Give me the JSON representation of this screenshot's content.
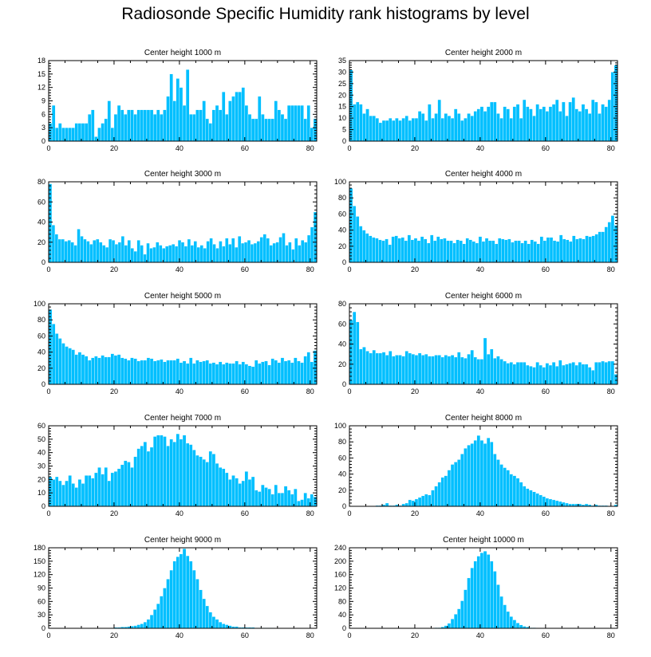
{
  "title": "Radiosonde Specific Humidity rank histograms by level",
  "colors": {
    "bar": "#00bfff",
    "frame": "#000000",
    "background": "#ffffff"
  },
  "chart_data": [
    {
      "type": "bar",
      "title": "Center height 1000 m",
      "xlim": [
        0,
        82
      ],
      "ylim": [
        0,
        18
      ],
      "xticks": [
        0,
        20,
        40,
        60,
        80
      ],
      "yticks": [
        0,
        3,
        6,
        9,
        12,
        15,
        18
      ],
      "values": [
        4,
        8,
        3,
        4,
        3,
        3,
        3,
        3,
        4,
        4,
        4,
        4,
        6,
        7,
        1,
        3,
        4,
        5,
        9,
        3,
        6,
        8,
        7,
        6,
        7,
        7,
        6,
        7,
        7,
        7,
        7,
        7,
        6,
        7,
        6,
        7,
        10,
        15,
        9,
        14,
        12,
        8,
        16,
        6,
        6,
        7,
        7,
        9,
        5,
        4,
        7,
        8,
        7,
        11,
        6,
        9,
        10,
        11,
        11,
        12,
        8,
        6,
        5,
        5,
        10,
        6,
        5,
        5,
        5,
        9,
        7,
        6,
        5,
        8,
        8,
        8,
        8,
        8,
        5,
        8,
        3,
        5
      ]
    },
    {
      "type": "bar",
      "title": "Center height 2000 m",
      "xlim": [
        0,
        82
      ],
      "ylim": [
        0,
        35
      ],
      "xticks": [
        0,
        20,
        40,
        60,
        80
      ],
      "yticks": [
        0,
        5,
        10,
        15,
        20,
        25,
        30,
        35
      ],
      "values": [
        31,
        16,
        17,
        16,
        12,
        14,
        11,
        11,
        10,
        8,
        9,
        9,
        10,
        9,
        10,
        9,
        10,
        11,
        9,
        10,
        10,
        13,
        12,
        9,
        16,
        10,
        12,
        18,
        10,
        12,
        11,
        10,
        14,
        12,
        9,
        10,
        12,
        11,
        13,
        14,
        15,
        13,
        15,
        17,
        17,
        12,
        10,
        15,
        14,
        10,
        15,
        16,
        10,
        18,
        15,
        14,
        11,
        16,
        14,
        15,
        13,
        15,
        16,
        18,
        13,
        17,
        11,
        17,
        19,
        14,
        13,
        16,
        14,
        12,
        18,
        17,
        12,
        16,
        15,
        18,
        30,
        33
      ]
    },
    {
      "type": "bar",
      "title": "Center height 3000 m",
      "xlim": [
        0,
        82
      ],
      "ylim": [
        0,
        80
      ],
      "xticks": [
        0,
        20,
        40,
        60,
        80
      ],
      "yticks": [
        0,
        20,
        40,
        60,
        80
      ],
      "values": [
        78,
        37,
        28,
        23,
        23,
        21,
        22,
        20,
        17,
        33,
        26,
        23,
        21,
        18,
        22,
        23,
        20,
        17,
        15,
        23,
        22,
        18,
        20,
        26,
        17,
        22,
        14,
        11,
        22,
        17,
        8,
        19,
        14,
        15,
        20,
        17,
        14,
        16,
        17,
        18,
        16,
        22,
        20,
        16,
        23,
        17,
        21,
        15,
        17,
        14,
        21,
        24,
        18,
        14,
        21,
        16,
        24,
        18,
        24,
        15,
        26,
        19,
        20,
        22,
        18,
        19,
        21,
        25,
        28,
        24,
        17,
        19,
        20,
        25,
        29,
        17,
        20,
        13,
        24,
        17,
        22,
        20,
        27,
        35,
        50
      ]
    },
    {
      "type": "bar",
      "title": "Center height 4000 m",
      "xlim": [
        0,
        82
      ],
      "ylim": [
        0,
        100
      ],
      "xticks": [
        0,
        20,
        40,
        60,
        80
      ],
      "yticks": [
        0,
        20,
        40,
        60,
        80,
        100
      ],
      "values": [
        92,
        70,
        57,
        45,
        40,
        36,
        33,
        31,
        30,
        28,
        27,
        29,
        22,
        32,
        33,
        30,
        31,
        27,
        34,
        28,
        30,
        27,
        32,
        29,
        24,
        34,
        27,
        32,
        29,
        30,
        27,
        27,
        24,
        28,
        27,
        23,
        30,
        28,
        26,
        24,
        32,
        26,
        30,
        27,
        27,
        23,
        30,
        29,
        28,
        29,
        25,
        27,
        27,
        24,
        27,
        23,
        28,
        26,
        23,
        32,
        27,
        31,
        31,
        27,
        26,
        34,
        29,
        28,
        26,
        33,
        29,
        30,
        29,
        33,
        32,
        33,
        35,
        38,
        38,
        44,
        50,
        58,
        46
      ]
    },
    {
      "type": "bar",
      "title": "Center height 5000 m",
      "xlim": [
        0,
        82
      ],
      "ylim": [
        0,
        100
      ],
      "xticks": [
        0,
        20,
        40,
        60,
        80
      ],
      "yticks": [
        0,
        20,
        40,
        60,
        80,
        100
      ],
      "values": [
        93,
        75,
        63,
        57,
        51,
        47,
        45,
        43,
        37,
        40,
        37,
        35,
        30,
        33,
        35,
        33,
        36,
        34,
        34,
        38,
        36,
        37,
        33,
        32,
        30,
        33,
        32,
        29,
        30,
        30,
        33,
        32,
        29,
        30,
        31,
        28,
        30,
        30,
        30,
        32,
        27,
        29,
        26,
        33,
        26,
        30,
        28,
        29,
        30,
        26,
        27,
        25,
        28,
        25,
        27,
        26,
        26,
        29,
        25,
        28,
        25,
        23,
        22,
        30,
        26,
        28,
        29,
        24,
        32,
        30,
        27,
        33,
        29,
        30,
        27,
        33,
        29,
        27,
        35,
        40,
        28,
        42
      ]
    },
    {
      "type": "bar",
      "title": "Center height 6000 m",
      "xlim": [
        0,
        82
      ],
      "ylim": [
        0,
        80
      ],
      "xticks": [
        0,
        20,
        40,
        60,
        80
      ],
      "yticks": [
        0,
        20,
        40,
        60,
        80
      ],
      "values": [
        64,
        72,
        62,
        35,
        37,
        33,
        31,
        34,
        31,
        31,
        32,
        29,
        33,
        28,
        29,
        29,
        28,
        33,
        31,
        30,
        29,
        31,
        29,
        30,
        28,
        28,
        29,
        29,
        27,
        29,
        28,
        29,
        27,
        32,
        27,
        26,
        30,
        34,
        27,
        25,
        25,
        46,
        30,
        35,
        26,
        28,
        25,
        23,
        21,
        22,
        20,
        22,
        22,
        22,
        19,
        18,
        17,
        22,
        19,
        17,
        21,
        19,
        22,
        18,
        24,
        19,
        20,
        21,
        22,
        19,
        22,
        20,
        20,
        17,
        14,
        22,
        22,
        23,
        22,
        23,
        23,
        10
      ]
    },
    {
      "type": "bar",
      "title": "Center height 7000 m",
      "xlim": [
        0,
        82
      ],
      "ylim": [
        0,
        60
      ],
      "xticks": [
        0,
        20,
        40,
        60,
        80
      ],
      "yticks": [
        0,
        10,
        20,
        30,
        40,
        50,
        60
      ],
      "values": [
        22,
        20,
        22,
        19,
        16,
        19,
        23,
        17,
        14,
        20,
        17,
        23,
        23,
        21,
        25,
        29,
        24,
        29,
        19,
        25,
        26,
        28,
        31,
        34,
        33,
        29,
        37,
        43,
        45,
        48,
        41,
        44,
        52,
        53,
        53,
        52,
        45,
        50,
        48,
        54,
        50,
        53,
        47,
        46,
        42,
        38,
        37,
        35,
        33,
        41,
        39,
        32,
        29,
        28,
        25,
        20,
        23,
        21,
        17,
        19,
        26,
        20,
        22,
        12,
        11,
        16,
        14,
        13,
        9,
        16,
        10,
        10,
        15,
        12,
        9,
        13,
        4,
        5,
        10,
        6,
        9,
        7
      ]
    },
    {
      "type": "bar",
      "title": "Center height 8000 m",
      "xlim": [
        0,
        82
      ],
      "ylim": [
        0,
        100
      ],
      "xticks": [
        0,
        20,
        40,
        60,
        80
      ],
      "yticks": [
        0,
        20,
        40,
        60,
        80,
        100
      ],
      "values": [
        0,
        0,
        0,
        0,
        0,
        0,
        0,
        0,
        1,
        1,
        2,
        4,
        1,
        1,
        2,
        1,
        3,
        4,
        8,
        7,
        9,
        11,
        13,
        15,
        14,
        20,
        25,
        30,
        36,
        38,
        45,
        52,
        55,
        58,
        65,
        72,
        76,
        78,
        82,
        88,
        82,
        78,
        85,
        80,
        65,
        58,
        52,
        48,
        45,
        40,
        38,
        35,
        30,
        25,
        22,
        20,
        18,
        16,
        14,
        12,
        10,
        9,
        8,
        7,
        6,
        5,
        4,
        3,
        3,
        3,
        3,
        2,
        3,
        2,
        1,
        2,
        1,
        1,
        1,
        0,
        0,
        2
      ]
    },
    {
      "type": "bar",
      "title": "Center height 9000 m",
      "xlim": [
        0,
        82
      ],
      "ylim": [
        0,
        180
      ],
      "xticks": [
        0,
        20,
        40,
        60,
        80
      ],
      "yticks": [
        0,
        30,
        60,
        90,
        120,
        150,
        180
      ],
      "values": [
        0,
        0,
        0,
        0,
        0,
        0,
        0,
        0,
        0,
        0,
        0,
        0,
        0,
        0,
        0,
        0,
        0,
        0,
        0,
        1,
        2,
        2,
        3,
        3,
        4,
        5,
        6,
        8,
        10,
        14,
        20,
        30,
        42,
        55,
        72,
        90,
        110,
        130,
        150,
        160,
        166,
        178,
        162,
        150,
        130,
        110,
        86,
        66,
        50,
        36,
        26,
        20,
        14,
        10,
        8,
        6,
        4,
        4,
        2,
        2,
        2,
        2,
        2,
        1,
        1,
        1,
        1,
        1,
        1,
        0,
        0,
        0,
        0,
        0,
        0,
        0,
        0,
        0,
        0,
        0,
        0,
        0
      ]
    },
    {
      "type": "bar",
      "title": "Center height 10000 m",
      "xlim": [
        0,
        82
      ],
      "ylim": [
        0,
        240
      ],
      "xticks": [
        0,
        20,
        40,
        60,
        80
      ],
      "yticks": [
        0,
        40,
        80,
        120,
        160,
        200,
        240
      ],
      "values": [
        0,
        0,
        0,
        0,
        0,
        0,
        0,
        0,
        0,
        0,
        0,
        0,
        0,
        0,
        0,
        0,
        0,
        0,
        0,
        0,
        0,
        0,
        0,
        0,
        0,
        1,
        2,
        2,
        4,
        8,
        15,
        28,
        42,
        58,
        82,
        115,
        150,
        180,
        200,
        215,
        225,
        230,
        220,
        200,
        170,
        130,
        95,
        70,
        50,
        35,
        25,
        16,
        10,
        6,
        4,
        2,
        2,
        1,
        1,
        1,
        0,
        0,
        0,
        0,
        0,
        0,
        0,
        0,
        0,
        0,
        0,
        0,
        0,
        0,
        0,
        0,
        0,
        0,
        0,
        0,
        0,
        0
      ]
    }
  ]
}
